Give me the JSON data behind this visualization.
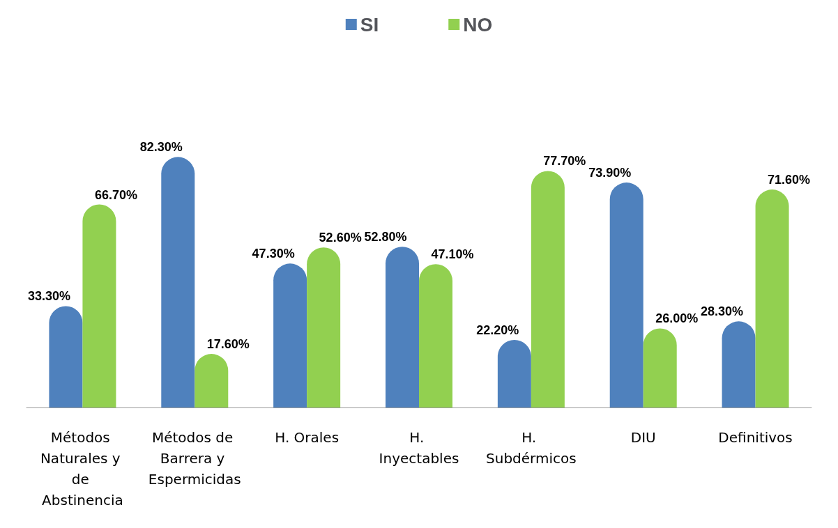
{
  "chart_data": {
    "type": "bar",
    "categories": [
      "Métodos Naturales y de Abstinencia",
      "Métodos de Barrera y Espermicidas",
      "H. Orales",
      "H. Inyectables",
      "H. Subdérmicos",
      "DIU",
      "Definitivos"
    ],
    "series": [
      {
        "name": "SI",
        "color": "#4f81bd",
        "values": [
          33.3,
          82.3,
          47.3,
          52.8,
          22.2,
          73.9,
          28.3
        ],
        "value_labels": [
          "33.30%",
          "82.30%",
          "47.30%",
          "52.80%",
          "22.20%",
          "73.90%",
          "28.30%"
        ]
      },
      {
        "name": "NO",
        "color": "#92d050",
        "values": [
          66.7,
          17.6,
          52.6,
          47.1,
          77.7,
          26.0,
          71.6
        ],
        "value_labels": [
          "66.70%",
          "17.60%",
          "52.60%",
          "47.10%",
          "77.70%",
          "26.00%",
          "71.60%"
        ]
      }
    ],
    "legend": "top"
  }
}
